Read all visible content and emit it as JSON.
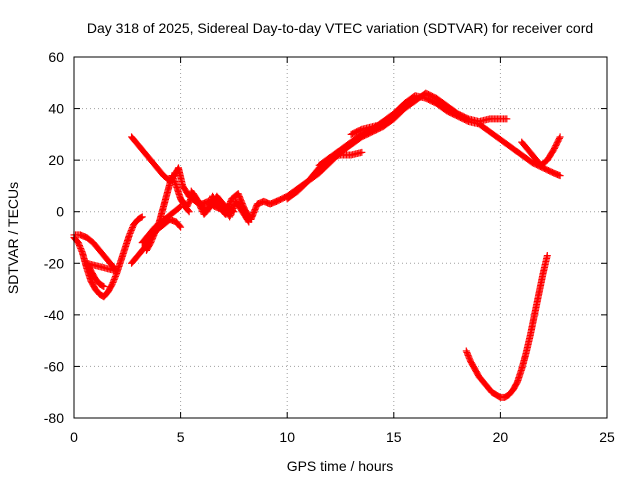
{
  "chart_data": {
    "type": "scatter",
    "title": "Day 318 of 2025, Sidereal Day-to-day VTEC variation (SDTVAR) for receiver cord",
    "xlabel": "GPS time / hours",
    "ylabel": "SDTVAR / TECUs",
    "xlim": [
      0,
      25
    ],
    "ylim": [
      -80,
      60
    ],
    "xticks": [
      0,
      5,
      10,
      15,
      20,
      25
    ],
    "yticks": [
      -80,
      -60,
      -40,
      -20,
      0,
      20,
      40,
      60
    ],
    "xtick_labels": [
      "0",
      "5",
      "10",
      "15",
      "20",
      "25"
    ],
    "ytick_labels": [
      "-80",
      "-60",
      "-40",
      "-20",
      "0",
      "20",
      "40",
      "60"
    ],
    "grid": true,
    "marker": "plus",
    "color": "#ff0000",
    "series": [
      {
        "name": "segment-early-dip",
        "x": [
          0.0,
          0.2,
          0.4,
          0.6,
          0.8,
          1.0,
          1.2,
          1.4,
          1.6,
          1.8,
          2.0,
          2.2,
          2.4,
          2.6,
          2.8,
          3.0,
          3.2
        ],
        "y": [
          -10,
          -12,
          -16,
          -22,
          -27,
          -30,
          -32,
          -33,
          -31,
          -28,
          -24,
          -19,
          -14,
          -9,
          -5,
          -3,
          -2
        ]
      },
      {
        "name": "segment-early-band",
        "x": [
          0.0,
          0.3,
          0.6,
          0.9,
          1.2,
          1.5,
          1.8,
          2.0,
          0.6,
          0.8,
          1.0,
          1.2,
          1.4
        ],
        "y": [
          -9,
          -9,
          -10,
          -12,
          -15,
          -18,
          -21,
          -23,
          -20,
          -23,
          -26,
          -28,
          -29
        ]
      },
      {
        "name": "segment-ramp-a",
        "x": [
          2.7,
          3.0,
          3.3,
          3.6,
          3.9,
          4.2,
          4.5,
          4.8,
          5.0
        ],
        "y": [
          -20,
          -17,
          -14,
          -10,
          -7,
          -5,
          -3,
          -4,
          -6
        ]
      },
      {
        "name": "segment-ramp-b",
        "x": [
          3.2,
          3.5,
          3.8,
          4.1,
          4.4,
          4.7,
          5.0
        ],
        "y": [
          -12,
          -9,
          -6,
          -4,
          -2,
          0,
          2
        ]
      },
      {
        "name": "segment-peak-curve",
        "x": [
          2.7,
          3.0,
          3.3,
          3.6,
          3.9,
          4.2,
          4.5,
          4.7,
          4.9,
          5.1,
          5.4,
          5.7,
          6.0,
          6.3,
          6.6,
          6.9,
          7.2,
          7.5
        ],
        "y": [
          29,
          26,
          23,
          20,
          17,
          14,
          12,
          14,
          17,
          10,
          6,
          4,
          3,
          4,
          2,
          1,
          2,
          0
        ]
      },
      {
        "name": "segment-low-curve",
        "x": [
          3.4,
          3.6,
          3.8,
          4.0,
          4.2,
          4.4,
          4.6,
          4.8,
          5.0,
          5.2,
          5.4
        ],
        "y": [
          -15,
          -12,
          -8,
          -4,
          2,
          8,
          14,
          10,
          5,
          2,
          0
        ]
      },
      {
        "name": "segment-mid-cluster",
        "x": [
          5.0,
          5.3,
          5.6,
          5.9,
          6.2,
          6.5,
          6.8,
          7.1,
          7.4,
          7.7,
          8.0,
          8.3,
          8.6,
          8.9,
          9.2,
          9.5
        ],
        "y": [
          5,
          2,
          7,
          3,
          0,
          6,
          2,
          -1,
          5,
          7,
          1,
          -3,
          3,
          4,
          3,
          4
        ]
      },
      {
        "name": "segment-mid-cluster-b",
        "x": [
          5.5,
          5.8,
          6.1,
          6.4,
          6.7,
          7.0,
          7.3,
          7.6,
          7.9,
          8.2
        ],
        "y": [
          8,
          4,
          -1,
          2,
          6,
          3,
          -2,
          4,
          0,
          -4
        ]
      },
      {
        "name": "segment-rise-a",
        "x": [
          9.5,
          10.0,
          10.5,
          11.0,
          11.5,
          12.0,
          12.5,
          13.0,
          13.5,
          14.0,
          14.5,
          15.0,
          15.5,
          16.0,
          16.5,
          17.0,
          17.5,
          18.0,
          18.5,
          19.0,
          19.5,
          20.0,
          20.5,
          21.0,
          21.5,
          22.0,
          22.5,
          22.8
        ],
        "y": [
          4,
          6,
          9,
          12,
          17,
          21,
          24,
          27,
          30,
          32,
          35,
          38,
          42,
          45,
          44,
          42,
          39,
          37,
          35,
          34,
          31,
          28,
          25,
          22,
          19,
          17,
          15,
          14
        ]
      },
      {
        "name": "segment-rise-b",
        "x": [
          10.0,
          10.5,
          11.0,
          11.5,
          12.0,
          12.5,
          13.0,
          13.5,
          14.0,
          14.5,
          15.0,
          15.5,
          16.0,
          16.5,
          17.0,
          17.5,
          18.0,
          18.5,
          19.0,
          19.5,
          20.0,
          20.3
        ],
        "y": [
          5,
          8,
          12,
          15,
          19,
          23,
          26,
          29,
          31,
          33,
          36,
          40,
          43,
          46,
          44,
          41,
          38,
          36,
          35,
          36,
          36,
          36
        ]
      },
      {
        "name": "segment-rise-c",
        "x": [
          11.5,
          12.0,
          12.5,
          13.0,
          13.5
        ],
        "y": [
          18,
          21,
          22,
          22,
          23
        ]
      },
      {
        "name": "segment-rise-d",
        "x": [
          13.0,
          13.5,
          14.0,
          14.5,
          15.0
        ],
        "y": [
          30,
          32,
          33,
          34,
          36
        ]
      },
      {
        "name": "segment-late-branch",
        "x": [
          21.0,
          21.3,
          21.6,
          21.9,
          22.2,
          22.5,
          22.8
        ],
        "y": [
          27,
          24,
          21,
          18,
          20,
          24,
          29
        ]
      },
      {
        "name": "segment-late-trough",
        "x": [
          18.4,
          18.6,
          18.8,
          19.0,
          19.2,
          19.4,
          19.6,
          19.8,
          20.0,
          20.2,
          20.4,
          20.6,
          20.8,
          21.0,
          21.2,
          21.4,
          21.6,
          21.8,
          22.0,
          22.2
        ],
        "y": [
          -54,
          -58,
          -61,
          -64,
          -66,
          -68,
          -70,
          -71,
          -72,
          -72,
          -71,
          -69,
          -66,
          -61,
          -55,
          -48,
          -40,
          -32,
          -24,
          -17
        ]
      }
    ]
  }
}
